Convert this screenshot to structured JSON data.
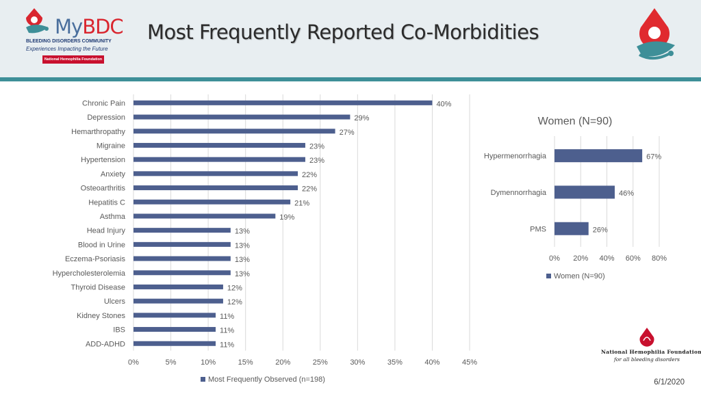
{
  "header": {
    "title": "Most Frequently Reported Co-Morbidities",
    "logo_left": {
      "brand_prefix": "My",
      "brand_accent": "BDC",
      "subtitle": "BLEEDING DISORDERS COMMUNITY",
      "tagline": "Experiences Impacting the Future",
      "badge": "National Hemophilia Foundation"
    },
    "logo_right_icon": "drop-figure-icon"
  },
  "footer": {
    "nhf_logo_name": "National Hemophilia Foundation",
    "nhf_logo_tagline": "for all bleeding disorders",
    "date": "6/1/2020"
  },
  "colors": {
    "bar": "#4d5f8e",
    "grid": "#d9d9d9",
    "header_bg": "#e8eef1",
    "header_rule": "#3e8f98",
    "text": "#595959"
  },
  "chart_data": [
    {
      "type": "bar",
      "orientation": "horizontal",
      "title": "",
      "categories": [
        "Chronic Pain",
        "Depression",
        "Hemarthropathy",
        "Migraine",
        "Hypertension",
        "Anxiety",
        "Osteoarthritis",
        "Hepatitis C",
        "Asthma",
        "Head Injury",
        "Blood in Urine",
        "Eczema-Psoriasis",
        "Hypercholesterolemia",
        "Thyroid Disease",
        "Ulcers",
        "Kidney Stones",
        "IBS",
        "ADD-ADHD"
      ],
      "series": [
        {
          "name": "Most Frequently Observed (n=198)",
          "values": [
            40,
            29,
            27,
            23,
            23,
            22,
            22,
            21,
            19,
            13,
            13,
            13,
            13,
            12,
            12,
            11,
            11,
            11
          ]
        }
      ],
      "value_labels": [
        "40%",
        "29%",
        "27%",
        "23%",
        "23%",
        "22%",
        "22%",
        "21%",
        "19%",
        "13%",
        "13%",
        "13%",
        "13%",
        "12%",
        "12%",
        "11%",
        "11%",
        "11%"
      ],
      "xlim": [
        0,
        45
      ],
      "ticks": [
        "0%",
        "5%",
        "10%",
        "15%",
        "20%",
        "25%",
        "30%",
        "35%",
        "40%",
        "45%"
      ],
      "grid": true,
      "legend": "bottom"
    },
    {
      "type": "bar",
      "orientation": "horizontal",
      "title": "Women (N=90)",
      "categories": [
        "Hypermenorrhagia",
        "Dymennorrhagia",
        "PMS"
      ],
      "series": [
        {
          "name": "Women (N=90)",
          "values": [
            67,
            46,
            26
          ]
        }
      ],
      "value_labels": [
        "67%",
        "46%",
        "26%"
      ],
      "xlim": [
        0,
        80
      ],
      "ticks": [
        "0%",
        "20%",
        "40%",
        "60%",
        "80%"
      ],
      "grid": true,
      "legend": "bottom"
    }
  ]
}
